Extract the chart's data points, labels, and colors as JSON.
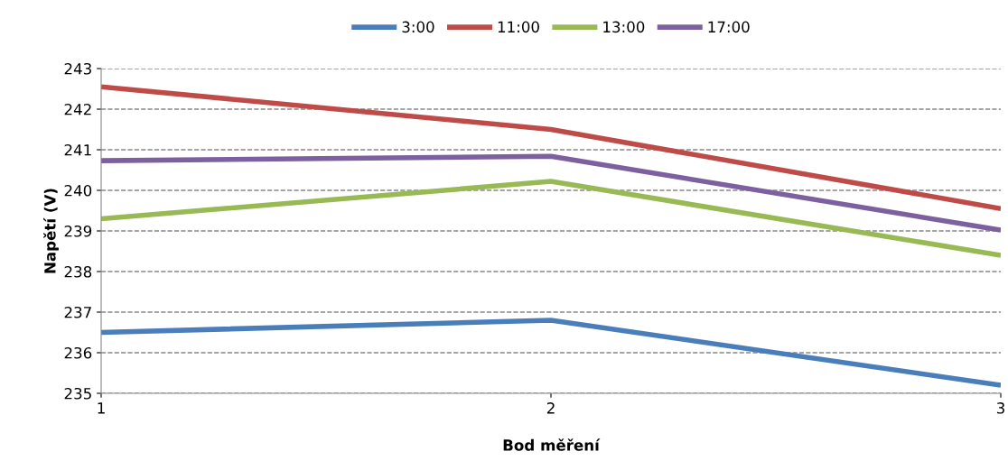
{
  "chart_data": {
    "type": "line",
    "xlabel": "Bod měření",
    "ylabel": "Napětí (V)",
    "x": [
      1,
      2,
      3
    ],
    "xlim": [
      1,
      3
    ],
    "xticks": [
      1,
      2,
      3
    ],
    "ylim": [
      235,
      243
    ],
    "yticks": [
      235,
      236,
      237,
      238,
      239,
      240,
      241,
      242,
      243
    ],
    "grid": "y",
    "legend": "top",
    "line_style": "solid",
    "marker": "none",
    "series": [
      {
        "name": "3:00",
        "color": "#4a7ebb",
        "values": [
          236.5,
          236.8,
          235.2
        ]
      },
      {
        "name": "11:00",
        "color": "#be4b48",
        "values": [
          242.55,
          241.5,
          239.55
        ]
      },
      {
        "name": "13:00",
        "color": "#98b954",
        "values": [
          239.3,
          240.22,
          238.4
        ]
      },
      {
        "name": "17:00",
        "color": "#7d60a0",
        "values": [
          240.73,
          240.84,
          239.02
        ]
      }
    ]
  }
}
